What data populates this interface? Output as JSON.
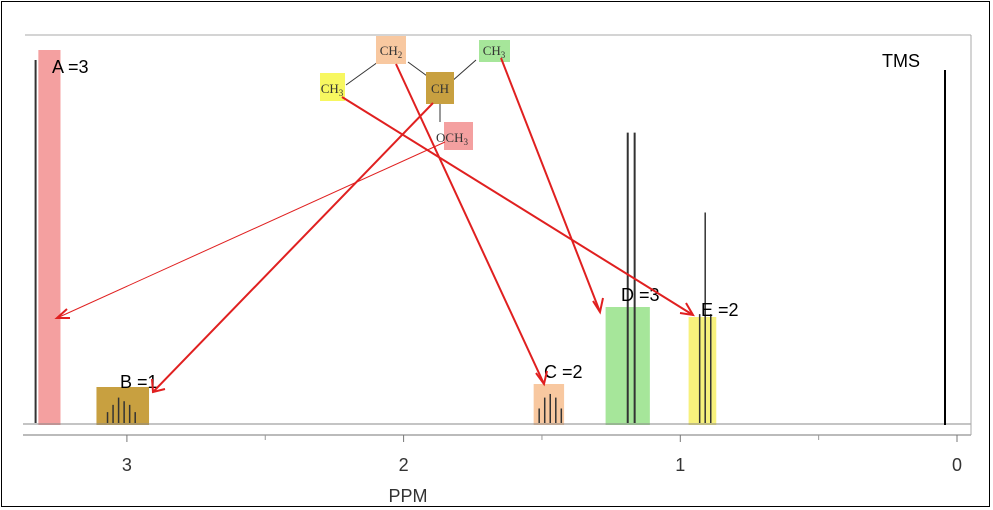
{
  "chart_data": {
    "type": "nmr-spectrum",
    "xlabel": "PPM",
    "x_direction": "decreasing",
    "xlim": [
      3.35,
      -0.02
    ],
    "x_ticks": [
      3,
      2,
      1,
      0
    ],
    "x_tick_labels": [
      "3",
      "2",
      "1",
      "0"
    ],
    "reference": {
      "label": "TMS",
      "ppm": 0
    },
    "signals": [
      {
        "label": "A =3",
        "ppm": 3.33,
        "multiplicity": "singlet",
        "integration": 3,
        "group": "OCH3",
        "color": "#f4a0a0",
        "peaks": [
          [
            3.33,
            1.0
          ]
        ],
        "highlight": [
          3.32,
          3.24
        ]
      },
      {
        "label": "B =1",
        "ppm": 3.0,
        "multiplicity": "multiplet",
        "integration": 1,
        "group": "CH",
        "color": "#c8a040",
        "peaks": [
          [
            3.07,
            0.03
          ],
          [
            3.05,
            0.05
          ],
          [
            3.03,
            0.07
          ],
          [
            3.01,
            0.06
          ],
          [
            2.99,
            0.05
          ],
          [
            2.97,
            0.03
          ]
        ],
        "highlight": [
          3.11,
          2.92
        ]
      },
      {
        "label": "C =2",
        "ppm": 1.47,
        "multiplicity": "multiplet",
        "integration": 2,
        "group": "CH2",
        "color": "#f8c8a0",
        "peaks": [
          [
            1.51,
            0.04
          ],
          [
            1.49,
            0.07
          ],
          [
            1.47,
            0.08
          ],
          [
            1.45,
            0.07
          ],
          [
            1.43,
            0.04
          ]
        ],
        "highlight": [
          1.53,
          1.42
        ]
      },
      {
        "label": "D =3",
        "ppm": 1.18,
        "multiplicity": "doublet",
        "integration": 3,
        "group": "CH3",
        "color": "#a6e69a",
        "peaks": [
          [
            1.19,
            0.8
          ],
          [
            1.165,
            0.8
          ]
        ],
        "highlight": [
          1.27,
          1.11
        ]
      },
      {
        "label": "E =2",
        "ppm": 0.91,
        "multiplicity": "triplet",
        "integration": 2,
        "group": "CH3",
        "color": "#f7f17c",
        "peaks": [
          [
            0.93,
            0.3
          ],
          [
            0.91,
            0.58
          ],
          [
            0.89,
            0.3
          ]
        ],
        "highlight": [
          0.97,
          0.87
        ]
      }
    ]
  },
  "structure": {
    "CH2": {
      "main": "CH",
      "sub": "2",
      "color": "#f8c8a0"
    },
    "CH3_left": {
      "main": "CH",
      "sub": "3",
      "color": "#f7f760"
    },
    "CH": {
      "main": "CH",
      "sub": "",
      "color": "#c8a040"
    },
    "CH3_right": {
      "main": "CH",
      "sub": "3",
      "color": "#a6e69a"
    },
    "OCH3": {
      "main": "OCH",
      "sub": "3",
      "color": "#f4a0a0"
    }
  },
  "arrow_color": "#e02020"
}
